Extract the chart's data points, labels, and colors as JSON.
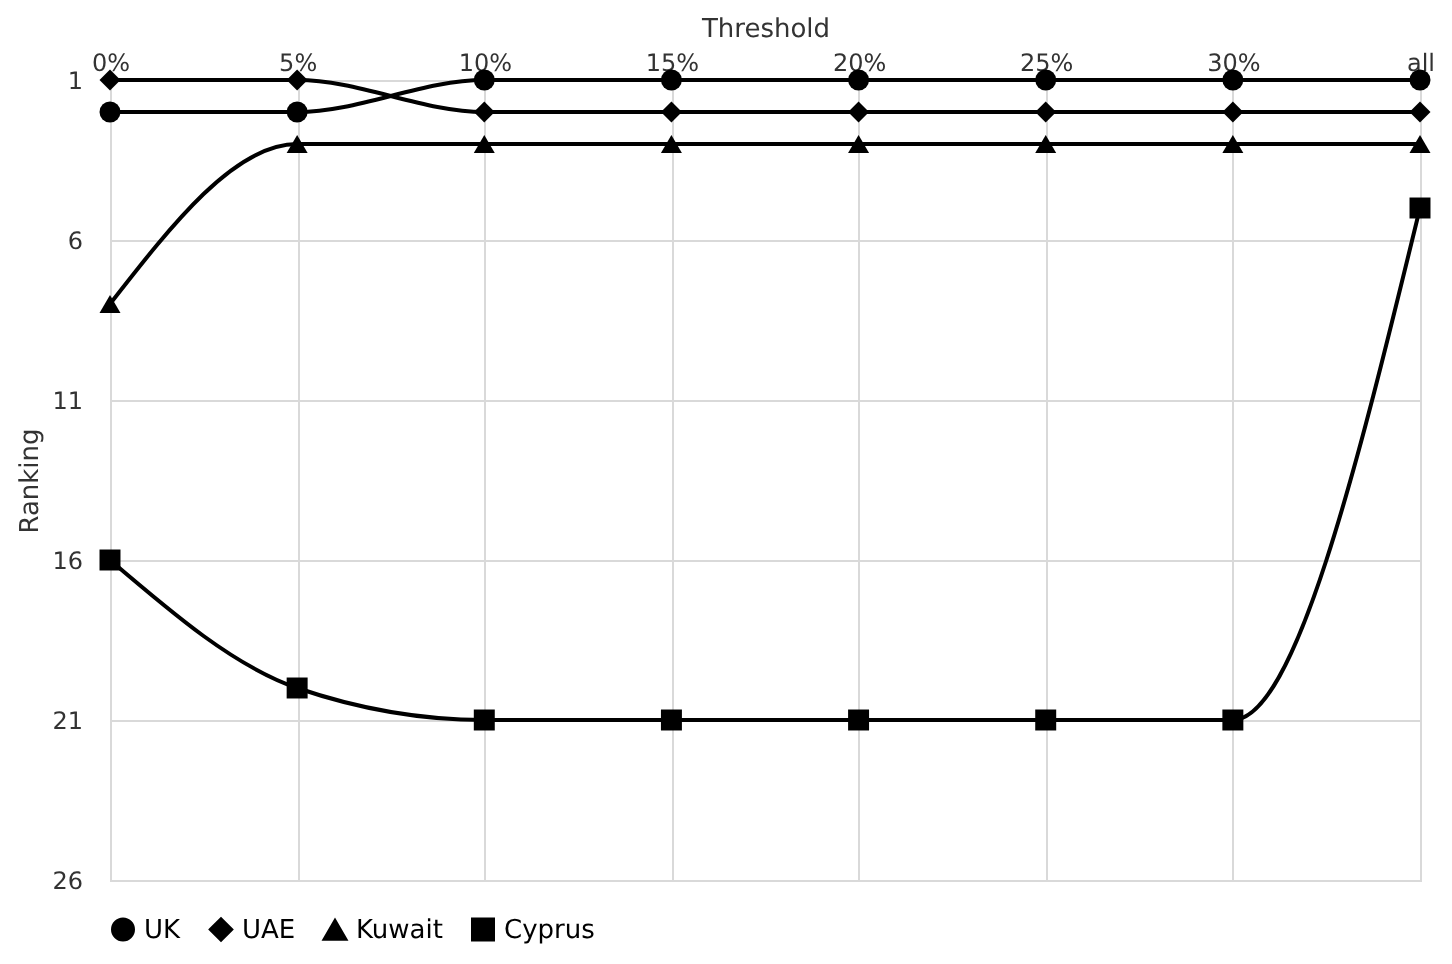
{
  "chart_data": {
    "type": "line",
    "xlabel": "Threshold",
    "ylabel": "Ranking",
    "categories": [
      "0%",
      "5%",
      "10%",
      "15%",
      "20%",
      "25%",
      "30%",
      "all"
    ],
    "series": [
      {
        "name": "UK",
        "color": "#000000",
        "marker": "circle",
        "values": [
          2,
          2,
          1,
          1,
          1,
          1,
          1,
          1
        ]
      },
      {
        "name": "UAE",
        "color": "#000000",
        "marker": "diamond",
        "values": [
          1,
          1,
          2,
          2,
          2,
          2,
          2,
          2
        ]
      },
      {
        "name": "Kuwait",
        "color": "#000000",
        "marker": "triangle",
        "values": [
          8,
          3,
          3,
          3,
          3,
          3,
          3,
          3
        ]
      },
      {
        "name": "Cyprus",
        "color": "#000000",
        "marker": "square",
        "values": [
          16,
          20,
          21,
          21,
          21,
          21,
          21,
          5
        ]
      }
    ],
    "ylim": [
      26,
      1
    ],
    "yticks": [
      1,
      6,
      11,
      16,
      21,
      26
    ],
    "grid": true,
    "legend": "bottom",
    "line_style": "solid"
  }
}
